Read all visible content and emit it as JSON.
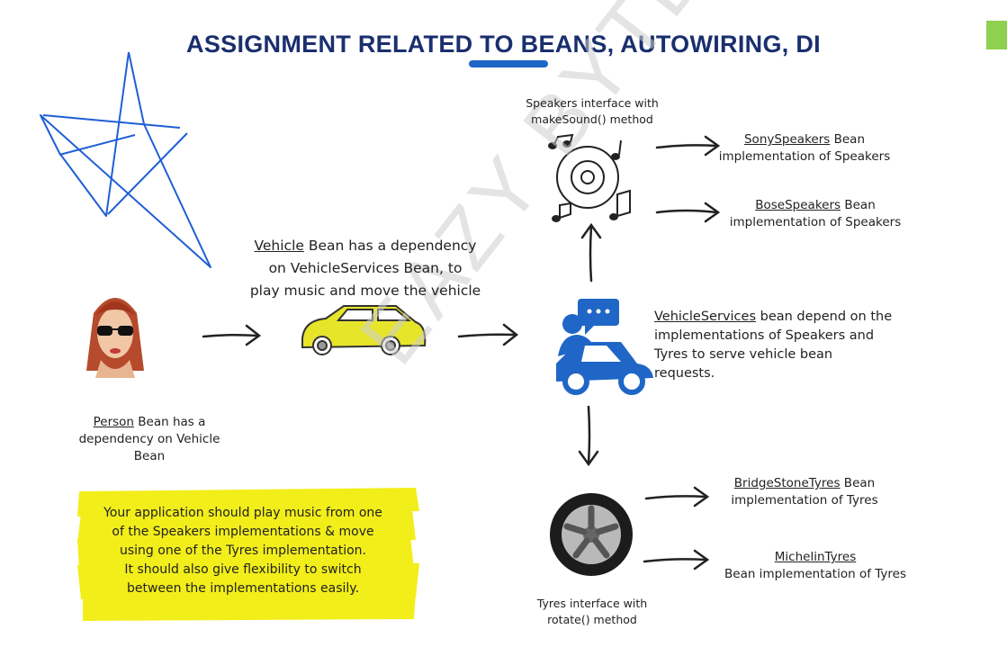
{
  "title": "ASSIGNMENT RELATED TO BEANS, AUTOWIRING, DI",
  "watermark": "EAZY BYTES",
  "vehicle": {
    "name": "Vehicle",
    "desc_line1": " Bean has a dependency",
    "desc_line2": "on VehicleServices Bean, to",
    "desc_line3": "play music and move the vehicle"
  },
  "person": {
    "name": "Person",
    "desc_line1": " Bean has a",
    "desc_line2": "dependency on Vehicle",
    "desc_line3": "Bean"
  },
  "vehicle_services": {
    "name": "VehicleServices",
    "desc_line1": " bean depend on the",
    "desc_line2": "implementations of Speakers and",
    "desc_line3": "Tyres to serve vehicle bean",
    "desc_line4": "requests."
  },
  "speakers": {
    "interface_line1": "Speakers interface with",
    "interface_line2": "makeSound() method",
    "impl1_name": "SonySpeakers",
    "impl1_suffix": " Bean",
    "impl1_desc": "implementation of Speakers",
    "impl2_name": "BoseSpeakers",
    "impl2_suffix": " Bean",
    "impl2_desc": "implementation of Speakers"
  },
  "tyres": {
    "interface_line1": "Tyres interface with",
    "interface_line2": "rotate() method",
    "impl1_name": "BridgeStoneTyres",
    "impl1_suffix": " Bean",
    "impl1_desc": "implementation of Tyres",
    "impl2_name": "MichelinTyres",
    "impl2_desc": "Bean implementation of Tyres"
  },
  "task": {
    "line1": "Your application should play music from one",
    "line2": "of the Speakers implementations & move",
    "line3": "using one of the Tyres implementation.",
    "line4": "It should also give flexibility to switch",
    "line5": "between the implementations easily."
  },
  "colors": {
    "title": "#1a2f6e",
    "accent_blue": "#1f66c7",
    "highlight": "#f2ee1a",
    "car_yellow": "#e7e52a",
    "corner_green": "#8fd14f"
  }
}
